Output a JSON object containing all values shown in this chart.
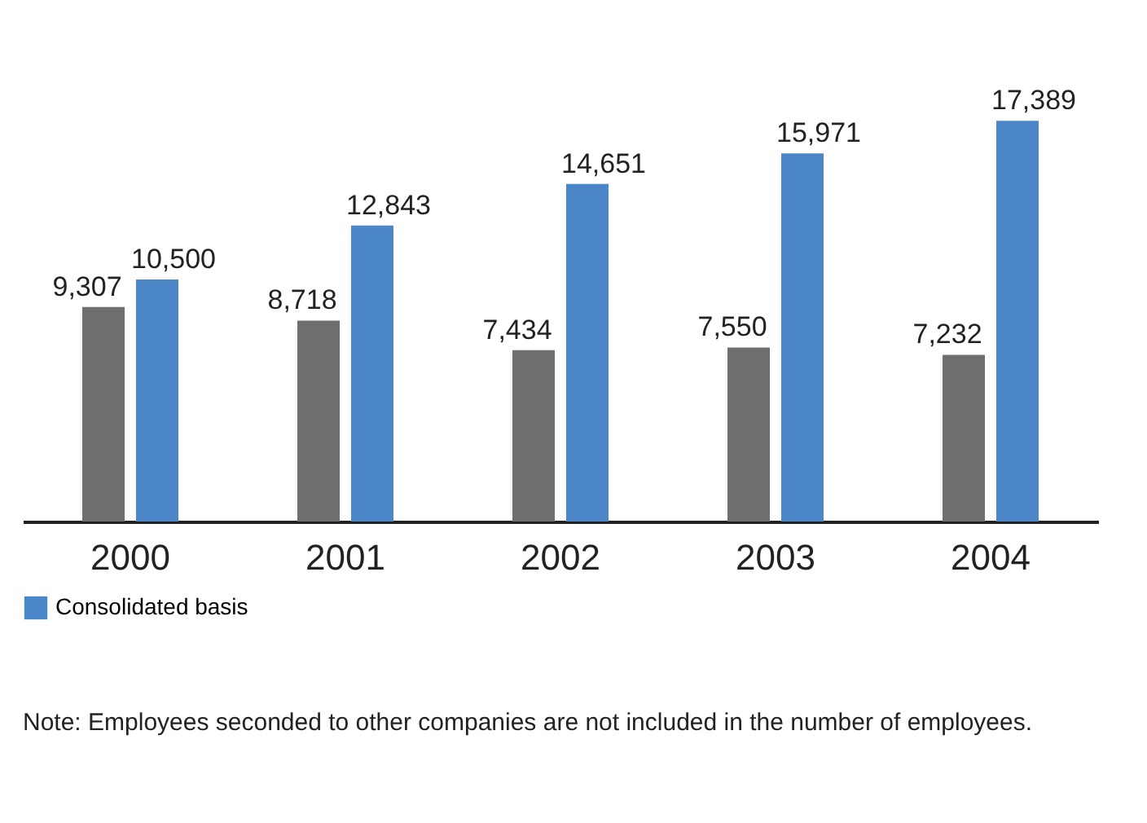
{
  "chart_data": {
    "type": "bar",
    "categories": [
      "2000",
      "2001",
      "2002",
      "2003",
      "2004"
    ],
    "series": [
      {
        "color": "#6e6e6e",
        "values": [
          9307,
          8718,
          7434,
          7550,
          7232
        ],
        "value_labels": [
          "9,307",
          "8,718",
          "7,434",
          "7,550",
          "7,232"
        ]
      },
      {
        "name": "Consolidated basis",
        "color": "#4a86c8",
        "values": [
          10500,
          12843,
          14651,
          15971,
          17389
        ],
        "value_labels": [
          "10,500",
          "12,843",
          "14,651",
          "15,971",
          "17,389"
        ]
      }
    ],
    "legend": "bottom left",
    "grid": false,
    "annotations": [
      "Note: Employees seconded to other companies are not included in the number of employees."
    ]
  }
}
